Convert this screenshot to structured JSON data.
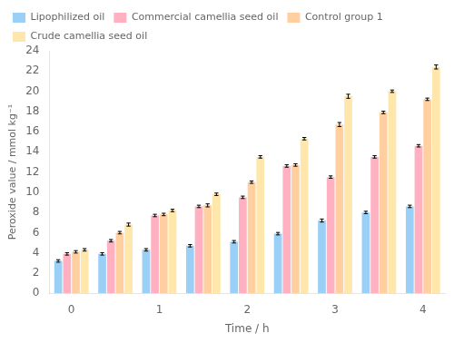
{
  "chart_data": {
    "type": "bar",
    "xlabel": "Time / h",
    "ylabel": "Peroxide value / mmol kg⁻¹",
    "categories": [
      "0",
      null,
      "1",
      null,
      "2",
      null,
      "3",
      null,
      "4"
    ],
    "series": [
      {
        "name": "Lipophilized oil",
        "values": [
          3.2,
          3.9,
          4.3,
          4.7,
          5.1,
          5.9,
          7.2,
          8.0,
          8.6
        ],
        "errors": [
          0.12,
          0.12,
          0.12,
          0.12,
          0.12,
          0.12,
          0.15,
          0.12,
          0.12
        ]
      },
      {
        "name": "Commercial camellia seed oil",
        "values": [
          3.9,
          5.2,
          7.7,
          8.6,
          9.5,
          12.6,
          11.5,
          13.5,
          14.6
        ],
        "errors": [
          0.12,
          0.12,
          0.12,
          0.12,
          0.12,
          0.12,
          0.12,
          0.12,
          0.12
        ]
      },
      {
        "name": "Control group 1",
        "values": [
          4.1,
          6.0,
          7.8,
          8.7,
          11.0,
          12.7,
          16.7,
          17.9,
          19.2
        ],
        "errors": [
          0.12,
          0.12,
          0.12,
          0.15,
          0.12,
          0.12,
          0.2,
          0.12,
          0.12
        ]
      },
      {
        "name": "Crude camellia seed oil",
        "values": [
          4.3,
          6.8,
          8.2,
          9.8,
          13.5,
          15.3,
          19.5,
          20.0,
          22.4
        ],
        "errors": [
          0.12,
          0.15,
          0.12,
          0.12,
          0.12,
          0.12,
          0.2,
          0.12,
          0.2
        ]
      }
    ],
    "ylim": [
      0,
      24
    ],
    "yticks": [
      0,
      2,
      4,
      6,
      8,
      10,
      12,
      14,
      16,
      18,
      20,
      22,
      24
    ],
    "legend": "upper left",
    "grid": false
  }
}
